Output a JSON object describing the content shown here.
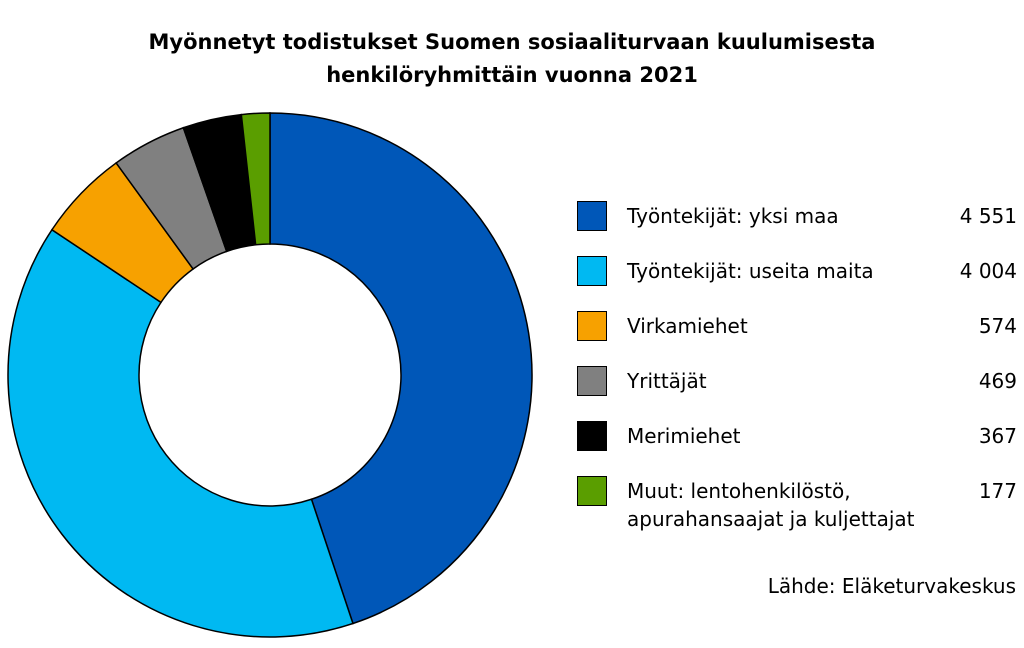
{
  "chart_data": {
    "type": "donut",
    "title": [
      "Myönnetyt todistukset Suomen sosiaaliturvaan kuulumisesta",
      "henkilöryhmittäin vuonna 2021"
    ],
    "categories": [
      "Työntekijät: yksi maa",
      "Työntekijät: useita maita",
      "Virkamiehet",
      "Yrittäjät",
      "Merimiehet",
      "Muut: lentohenkilöstö, apurahansaajat ja kuljettajat"
    ],
    "values": [
      4551,
      4004,
      574,
      469,
      367,
      177
    ],
    "value_labels": [
      "4 551",
      "4 004",
      "574",
      "469",
      "367",
      "177"
    ],
    "colors": [
      "#0057b8",
      "#00b9f2",
      "#f7a100",
      "#808080",
      "#000000",
      "#5a9e00"
    ],
    "source": "Lähde: Eläketurvakeskus"
  }
}
